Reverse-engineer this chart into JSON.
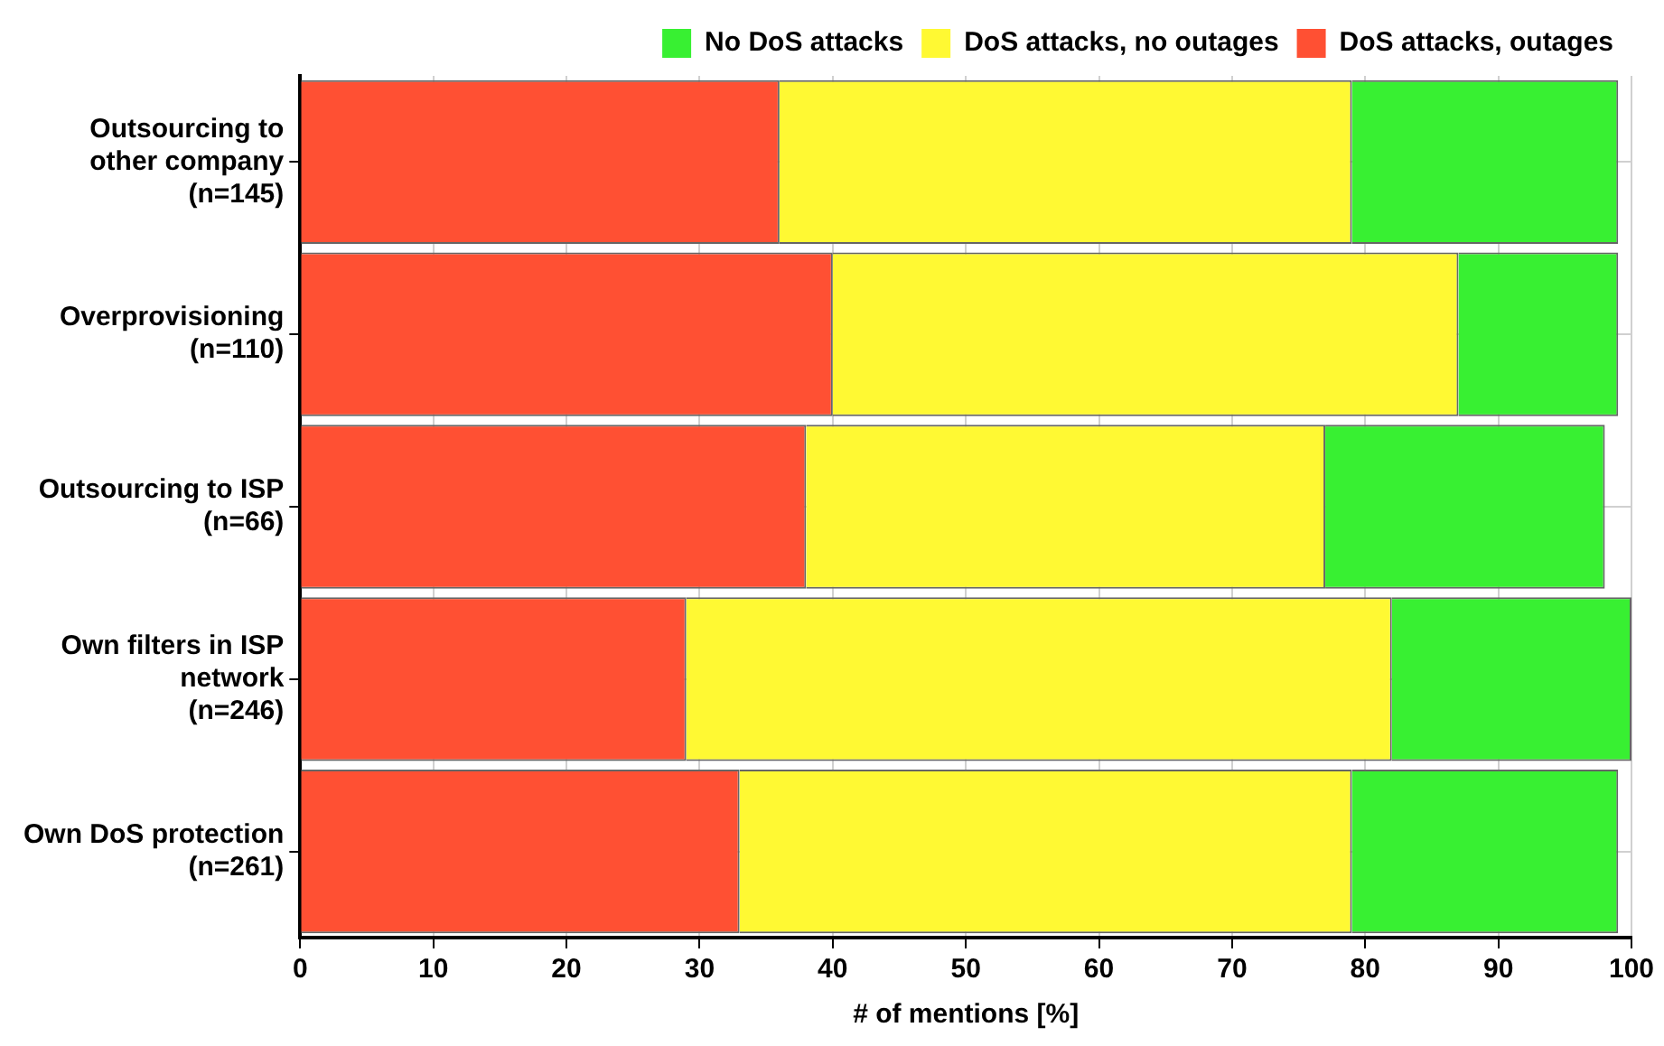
{
  "chart_data": {
    "type": "bar",
    "orientation": "horizontal",
    "stacked": true,
    "xlabel": "# of mentions [%]",
    "categories": [
      "Outsourcing to\nother company\n(n=145)",
      "Overprovisioning\n(n=110)",
      "Outsourcing to ISP\n(n=66)",
      "Own filters in ISP\nnetwork\n(n=246)",
      "Own DoS protection\n(n=261)"
    ],
    "series": [
      {
        "name": "DoS attacks, outages",
        "color": "#ff5033",
        "values": [
          36,
          40,
          38,
          29,
          33
        ]
      },
      {
        "name": "DoS attacks, no outages",
        "color": "#fff933",
        "values": [
          43,
          47,
          39,
          53,
          46
        ]
      },
      {
        "name": "No DoS attacks",
        "color": "#38f032",
        "values": [
          20,
          12,
          21,
          18,
          20
        ]
      }
    ],
    "xlim": [
      0,
      100
    ],
    "xticks": [
      0,
      10,
      20,
      30,
      40,
      50,
      60,
      70,
      80,
      90,
      100
    ],
    "grid": true,
    "legend": "top right"
  }
}
